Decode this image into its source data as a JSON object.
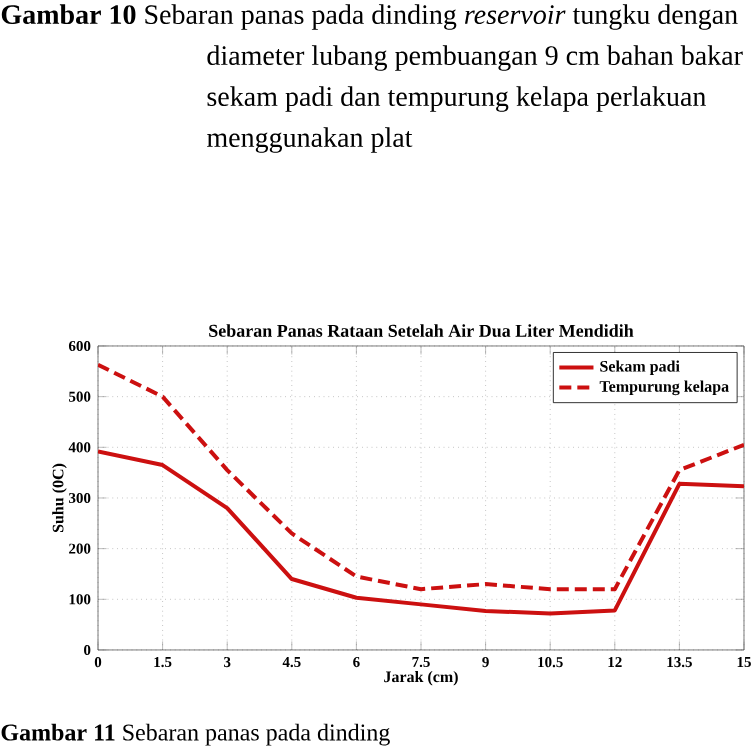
{
  "chart_data": {
    "type": "line",
    "title": "Sebaran Panas Rataan Setelah Air Dua Liter Mendidih",
    "xlabel": "Jarak (cm)",
    "ylabel": "Suhu (0C)",
    "annotations": [
      "**Gambar 10** Sebaran panas pada dinding *reservoir* tungku dengan diameter lubang pembuangan 9 cm bahan bakar sekam padi dan tempurung kelapa perlakuan menggunakan plat",
      "**Gambar 11** Sebaran panas pada dinding"
    ],
    "x": [
      0,
      1.5,
      3,
      4.5,
      6,
      7.5,
      9,
      10.5,
      12,
      13.5,
      15
    ],
    "series": [
      {
        "name": "Sekam padi",
        "color": "#cc1010",
        "line_style": "solid",
        "values": [
          392,
          365,
          280,
          140,
          103,
          90,
          77,
          72,
          78,
          328,
          323
        ]
      },
      {
        "name": "Tempurung kelapa",
        "color": "#cc1010",
        "line_style": "dashed",
        "values": [
          563,
          500,
          355,
          230,
          145,
          120,
          130,
          120,
          120,
          355,
          405
        ]
      }
    ],
    "xlim": [
      0,
      15
    ],
    "ylim": [
      0,
      600
    ],
    "xticks": [
      0,
      1.5,
      3,
      4.5,
      6,
      7.5,
      9,
      10.5,
      12,
      13.5,
      15
    ],
    "yticks": [
      0,
      100,
      200,
      300,
      400,
      500,
      600
    ],
    "grid": true,
    "legend": "top right",
    "marker": "none"
  }
}
